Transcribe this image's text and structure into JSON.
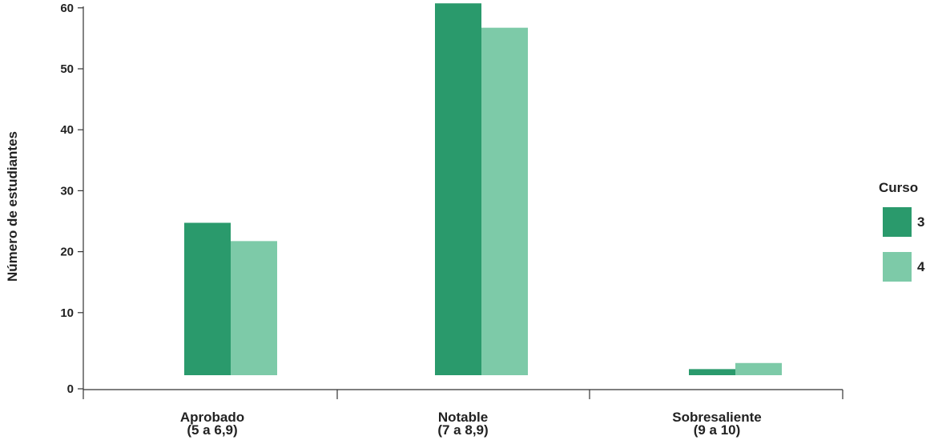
{
  "chart_data": {
    "type": "bar",
    "ylabel": "Número de estudiantes",
    "xlabel": "",
    "ylim": [
      0,
      63
    ],
    "yticks": [
      0,
      10,
      20,
      30,
      40,
      50,
      60
    ],
    "categories": [
      {
        "line1": "Aprobado",
        "line2": "(5 a 6,9)"
      },
      {
        "line1": "Notable",
        "line2": "(7 a 8,9)"
      },
      {
        "line1": "Sobresaliente",
        "line2": "(9 a 10)"
      }
    ],
    "series": [
      {
        "name": "3",
        "color": "#2a9a6c",
        "values": [
          25,
          61,
          1
        ]
      },
      {
        "name": "4",
        "color": "#7dcaa8",
        "values": [
          22,
          57,
          2
        ]
      }
    ],
    "legend": {
      "title": "Curso",
      "position": "right"
    },
    "grid": false
  }
}
